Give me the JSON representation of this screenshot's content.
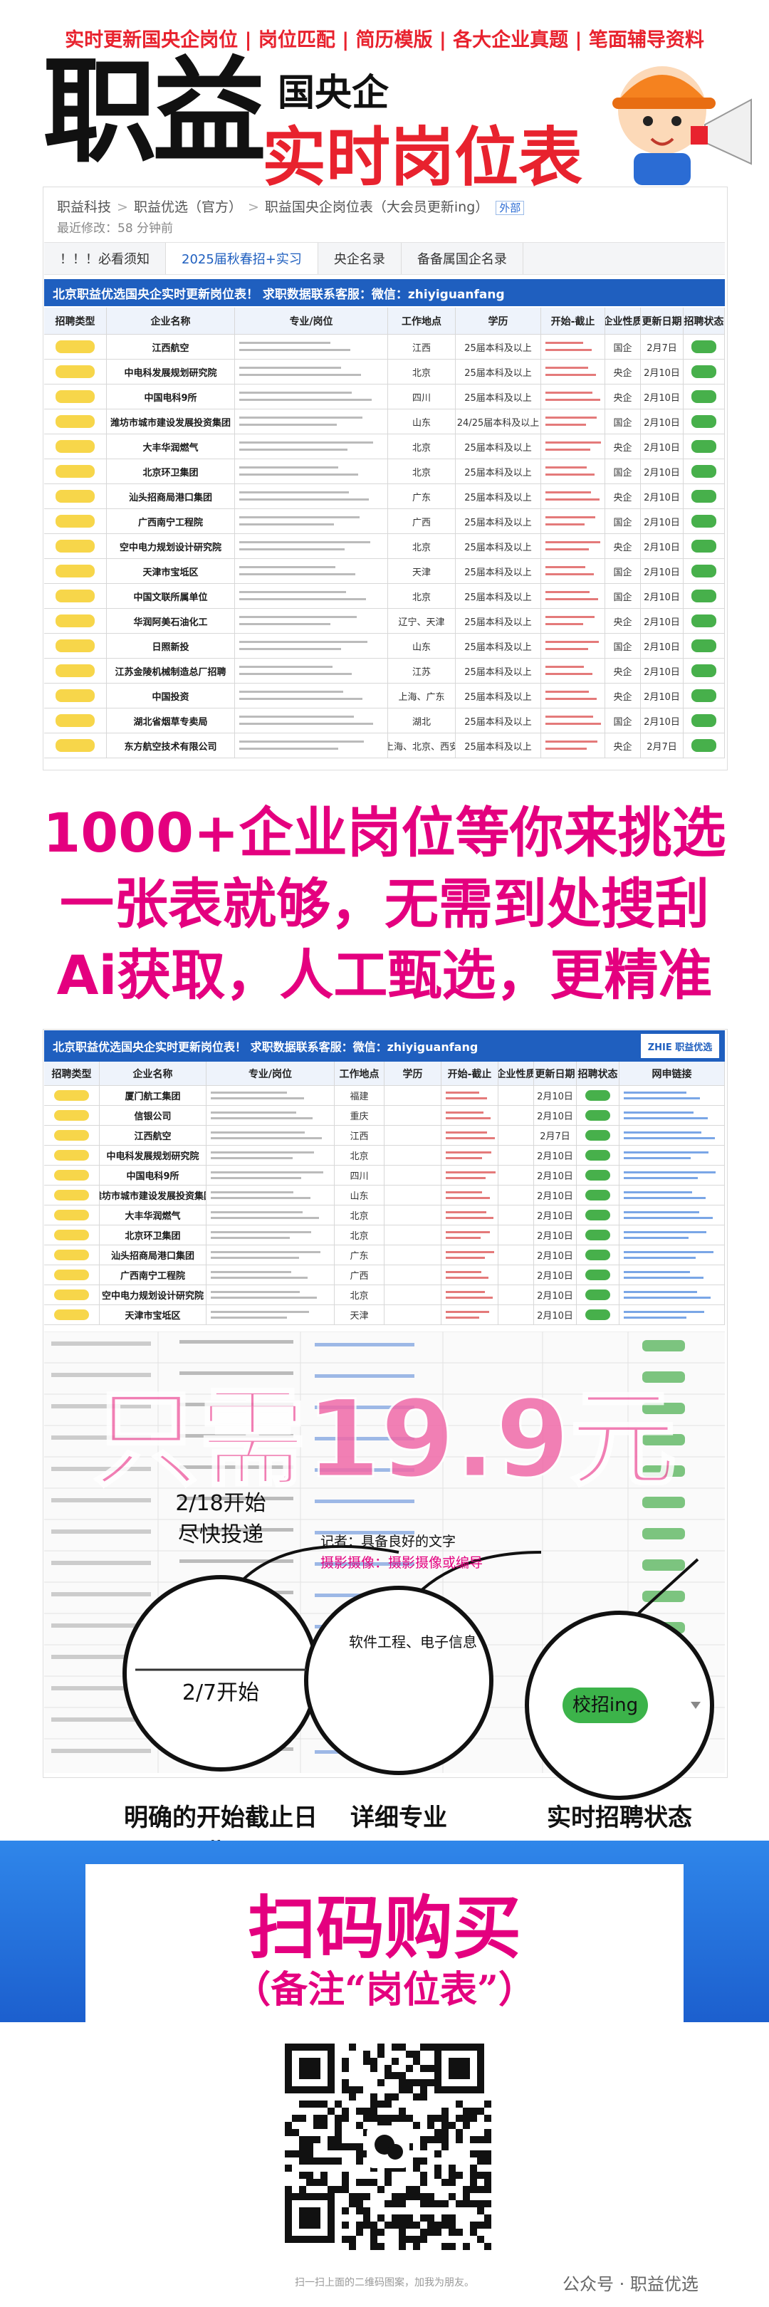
{
  "header": {
    "tagline": "实时更新国央企岗位 | 岗位匹配 | 简历模版 | 各大企业真题 | 笔面辅导资料",
    "brand": "职益",
    "subtitle": "国央企",
    "title": "实时岗位表"
  },
  "doc": {
    "breadcrumb": [
      "职益科技",
      "职益优选（官方）",
      "职益国央企岗位表（大会员更新ing）"
    ],
    "badge": "外部",
    "modified": "最近修改：58 分钟前",
    "tabs": [
      "！！！必看须知",
      "2025届秋春招+实习",
      "央企名录",
      "备备属国企名录"
    ],
    "banner": "北京职益优选国央企实时更新岗位表！ 求职数据联系客服：微信：zhiyiguanfang",
    "columns": [
      "招聘类型",
      "企业名称",
      "专业/岗位",
      "工作地点",
      "学历",
      "开始-截止",
      "企业性质",
      "更新日期",
      "招聘状态"
    ],
    "rows": [
      {
        "company": "江西航空",
        "location": "江西",
        "education": "25届本科及以上",
        "nature": "国企",
        "update": "2月7日"
      },
      {
        "company": "中电科发展规划研究院",
        "location": "北京",
        "education": "25届本科及以上",
        "nature": "央企",
        "update": "2月10日"
      },
      {
        "company": "中国电科9所",
        "location": "四川",
        "education": "25届本科及以上",
        "nature": "央企",
        "update": "2月10日"
      },
      {
        "company": "潍坊市城市建设发展投资集团",
        "location": "山东",
        "education": "24/25届本科及以上",
        "nature": "国企",
        "update": "2月10日"
      },
      {
        "company": "大丰华润燃气",
        "location": "北京",
        "education": "25届本科及以上",
        "nature": "央企",
        "update": "2月10日"
      },
      {
        "company": "北京环卫集团",
        "location": "北京",
        "education": "25届本科及以上",
        "nature": "国企",
        "update": "2月10日"
      },
      {
        "company": "汕头招商局港口集团",
        "location": "广东",
        "education": "25届本科及以上",
        "nature": "央企",
        "update": "2月10日"
      },
      {
        "company": "广西南宁工程院",
        "location": "广西",
        "education": "25届本科及以上",
        "nature": "国企",
        "update": "2月10日"
      },
      {
        "company": "空中电力规划设计研究院",
        "location": "北京",
        "education": "25届本科及以上",
        "nature": "央企",
        "update": "2月10日"
      },
      {
        "company": "天津市宝坻区",
        "location": "天津",
        "education": "25届本科及以上",
        "nature": "国企",
        "update": "2月10日"
      },
      {
        "company": "中国文联所属单位",
        "location": "北京",
        "education": "25届本科及以上",
        "nature": "国企",
        "update": "2月10日"
      },
      {
        "company": "华润阿美石油化工",
        "location": "辽宁、天津",
        "education": "25届本科及以上",
        "nature": "央企",
        "update": "2月10日"
      },
      {
        "company": "日照新投",
        "location": "山东",
        "education": "25届本科及以上",
        "nature": "国企",
        "update": "2月10日"
      },
      {
        "company": "江苏金陵机械制造总厂招聘",
        "location": "江苏",
        "education": "25届本科及以上",
        "nature": "央企",
        "update": "2月10日"
      },
      {
        "company": "中国投资",
        "location": "上海、广东",
        "education": "25届本科及以上",
        "nature": "央企",
        "update": "2月10日"
      },
      {
        "company": "湖北省烟草专卖局",
        "location": "湖北",
        "education": "25届本科及以上",
        "nature": "国企",
        "update": "2月10日"
      },
      {
        "company": "东方航空技术有限公司",
        "location": "上海、北京、西安",
        "education": "25届本科及以上",
        "nature": "央企",
        "update": "2月7日"
      }
    ]
  },
  "slogans": [
    "1000+企业岗位等你来挑选",
    "一张表就够，无需到处搜刮",
    "Ai获取，人工甄选，更精准"
  ],
  "preview": {
    "banner": "北京职益优选国央企实时更新岗位表！ 求职数据联系客服：微信：zhiyiguanfang",
    "logo": "ZHIE 职益优选",
    "columns": [
      "招聘类型",
      "企业名称",
      "专业/岗位",
      "工作地点",
      "学历",
      "开始-截止",
      "企业性质",
      "更新日期",
      "招聘状态",
      "网申链接"
    ],
    "rows": [
      {
        "company": "厦门航工集团",
        "location": "福建",
        "update": "2月10日"
      },
      {
        "company": "信银公司",
        "location": "重庆",
        "update": "2月10日"
      },
      {
        "company": "江西航空",
        "location": "江西",
        "update": "2月7日"
      },
      {
        "company": "中电科发展规划研究院",
        "location": "北京",
        "update": "2月10日"
      },
      {
        "company": "中国电科9所",
        "location": "四川",
        "update": "2月10日"
      },
      {
        "company": "潍坊市城市建设发展投资集团",
        "location": "山东",
        "update": "2月10日"
      },
      {
        "company": "大丰华润燃气",
        "location": "北京",
        "update": "2月10日"
      },
      {
        "company": "北京环卫集团",
        "location": "北京",
        "update": "2月10日"
      },
      {
        "company": "汕头招商局港口集团",
        "location": "广东",
        "update": "2月10日"
      },
      {
        "company": "广西南宁工程院",
        "location": "广西",
        "update": "2月10日"
      },
      {
        "company": "空中电力规划设计研究院",
        "location": "北京",
        "update": "2月10日"
      },
      {
        "company": "天津市宝坻区",
        "location": "天津",
        "update": "2月10日"
      }
    ],
    "price": "只需19.9元"
  },
  "callouts": [
    {
      "lines": [
        "2/18开始",
        "尽快投递",
        "2/7开始"
      ],
      "caption": "明确的开始截止日期"
    },
    {
      "lines": [
        "记者：具备良好的文字",
        "摄影摄像：摄影摄像或编导",
        "软件工程、电子信息"
      ],
      "caption": "详细专业"
    },
    {
      "lines": [
        "校招ing"
      ],
      "caption": "实时招聘状态"
    }
  ],
  "cta": {
    "title": "扫码购买",
    "note": "（备注“岗位表”）"
  },
  "footer": {
    "qr_caption": "扫一扫上面的二维码图案，加我为朋友。",
    "account": "公众号 · 职益优选"
  }
}
